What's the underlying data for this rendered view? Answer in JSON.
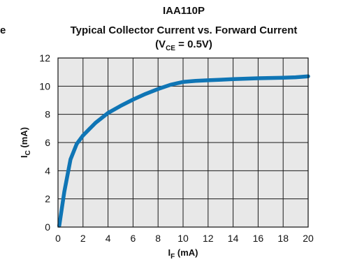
{
  "chart_data": {
    "type": "line",
    "title_line1": "IAA110P",
    "title_line2": "Typical Collector Current vs. Forward Current",
    "title_line3": {
      "open": "(V",
      "sub": "CE",
      "rest": " = 0.5V)"
    },
    "edge_fragment": "e",
    "xlabel": {
      "main": "I",
      "sub": "F",
      "unit": " (mA)"
    },
    "ylabel": {
      "main": "I",
      "sub": "C",
      "unit": " (mA)"
    },
    "xlim": [
      0,
      20
    ],
    "ylim": [
      0,
      12
    ],
    "x_ticks": [
      "0",
      "2",
      "4",
      "6",
      "8",
      "10",
      "12",
      "14",
      "16",
      "18",
      "20"
    ],
    "y_ticks": [
      "0",
      "2",
      "4",
      "6",
      "8",
      "10",
      "12"
    ],
    "grid": true,
    "colors": {
      "plot_bg": "#e8e8e8",
      "grid": "#1a1a1a",
      "line": "#0f75b5"
    },
    "series": [
      {
        "x": [
          0.1,
          0.5,
          1.0,
          1.5,
          2.0,
          3.0,
          4.0,
          5.0,
          6.0,
          7.0,
          8.0,
          9.0,
          10.0,
          11.0,
          12.0,
          13.0,
          14.0,
          15.0,
          16.0,
          17.0,
          18.0,
          19.0,
          20.0
        ],
        "y": [
          0.1,
          2.5,
          4.8,
          5.9,
          6.5,
          7.4,
          8.1,
          8.6,
          9.05,
          9.45,
          9.8,
          10.1,
          10.3,
          10.38,
          10.42,
          10.46,
          10.5,
          10.53,
          10.56,
          10.58,
          10.6,
          10.63,
          10.7
        ]
      }
    ]
  }
}
